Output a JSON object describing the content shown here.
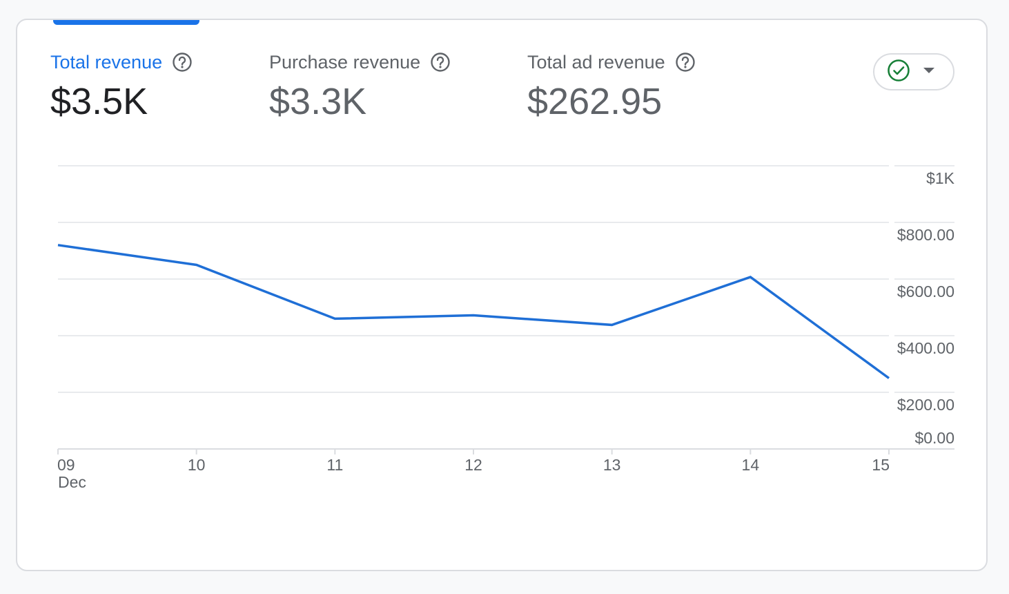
{
  "metrics": [
    {
      "label": "Total revenue",
      "value": "$3.5K",
      "active": true
    },
    {
      "label": "Purchase revenue",
      "value": "$3.3K",
      "active": false
    },
    {
      "label": "Total ad revenue",
      "value": "$262.95",
      "active": false
    }
  ],
  "status_dropdown": {
    "icon": "check-circle-icon",
    "state": "ok"
  },
  "colors": {
    "accent": "#1a73e8",
    "line": "#1f6fd6",
    "status_ok": "#188038",
    "grid": "#e8eaed",
    "text_muted": "#5f6368"
  },
  "chart_data": {
    "type": "line",
    "x": [
      "09",
      "10",
      "11",
      "12",
      "13",
      "14",
      "15"
    ],
    "x_sublabel": "Dec",
    "series": [
      {
        "values": [
          720,
          650,
          460,
          472,
          438,
          607,
          250
        ]
      }
    ],
    "ylim": [
      0,
      1000
    ],
    "yticks": [
      {
        "value": 1000,
        "label": "$1K"
      },
      {
        "value": 800,
        "label": "$800.00"
      },
      {
        "value": 600,
        "label": "$600.00"
      },
      {
        "value": 400,
        "label": "$400.00"
      },
      {
        "value": 200,
        "label": "$200.00"
      },
      {
        "value": 0,
        "label": "$0.00"
      }
    ],
    "grid": true
  }
}
